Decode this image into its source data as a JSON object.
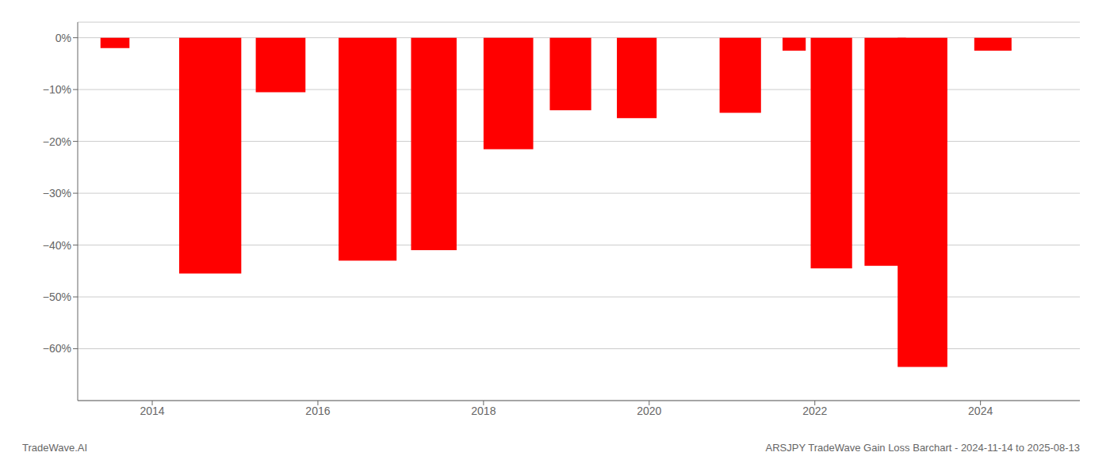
{
  "chart_data": {
    "type": "bar",
    "x": [
      2013.55,
      2014.7,
      2015.55,
      2016.6,
      2017.4,
      2018.3,
      2019.05,
      2019.85,
      2021.1,
      2021.75,
      2022.2,
      2022.85,
      2023.3,
      2024.15
    ],
    "values": [
      -2.0,
      -45.5,
      -10.5,
      -43.0,
      -41.0,
      -21.5,
      -14.0,
      -15.5,
      -14.5,
      -2.5,
      -44.5,
      -44.0,
      -63.5,
      -2.5
    ],
    "widths": [
      0.35,
      0.75,
      0.6,
      0.7,
      0.55,
      0.6,
      0.5,
      0.48,
      0.5,
      0.28,
      0.5,
      0.5,
      0.6,
      0.45
    ],
    "color": "#ff0000",
    "xlim": [
      2013.1,
      2025.2
    ],
    "ylim": [
      -70,
      3
    ],
    "xticks": [
      2014,
      2016,
      2018,
      2020,
      2022,
      2024
    ],
    "yticks": [
      {
        "value": 0,
        "label": "0%"
      },
      {
        "value": -10,
        "label": "−10%"
      },
      {
        "value": -20,
        "label": "−20%"
      },
      {
        "value": -30,
        "label": "−30%"
      },
      {
        "value": -40,
        "label": "−40%"
      },
      {
        "value": -50,
        "label": "−50%"
      },
      {
        "value": -60,
        "label": "−60%"
      }
    ],
    "grid": true,
    "annotations": [
      "TradeWave.AI",
      "ARSJPY TradeWave Gain Loss Barchart - 2024-11-14 to 2025-08-13"
    ]
  }
}
